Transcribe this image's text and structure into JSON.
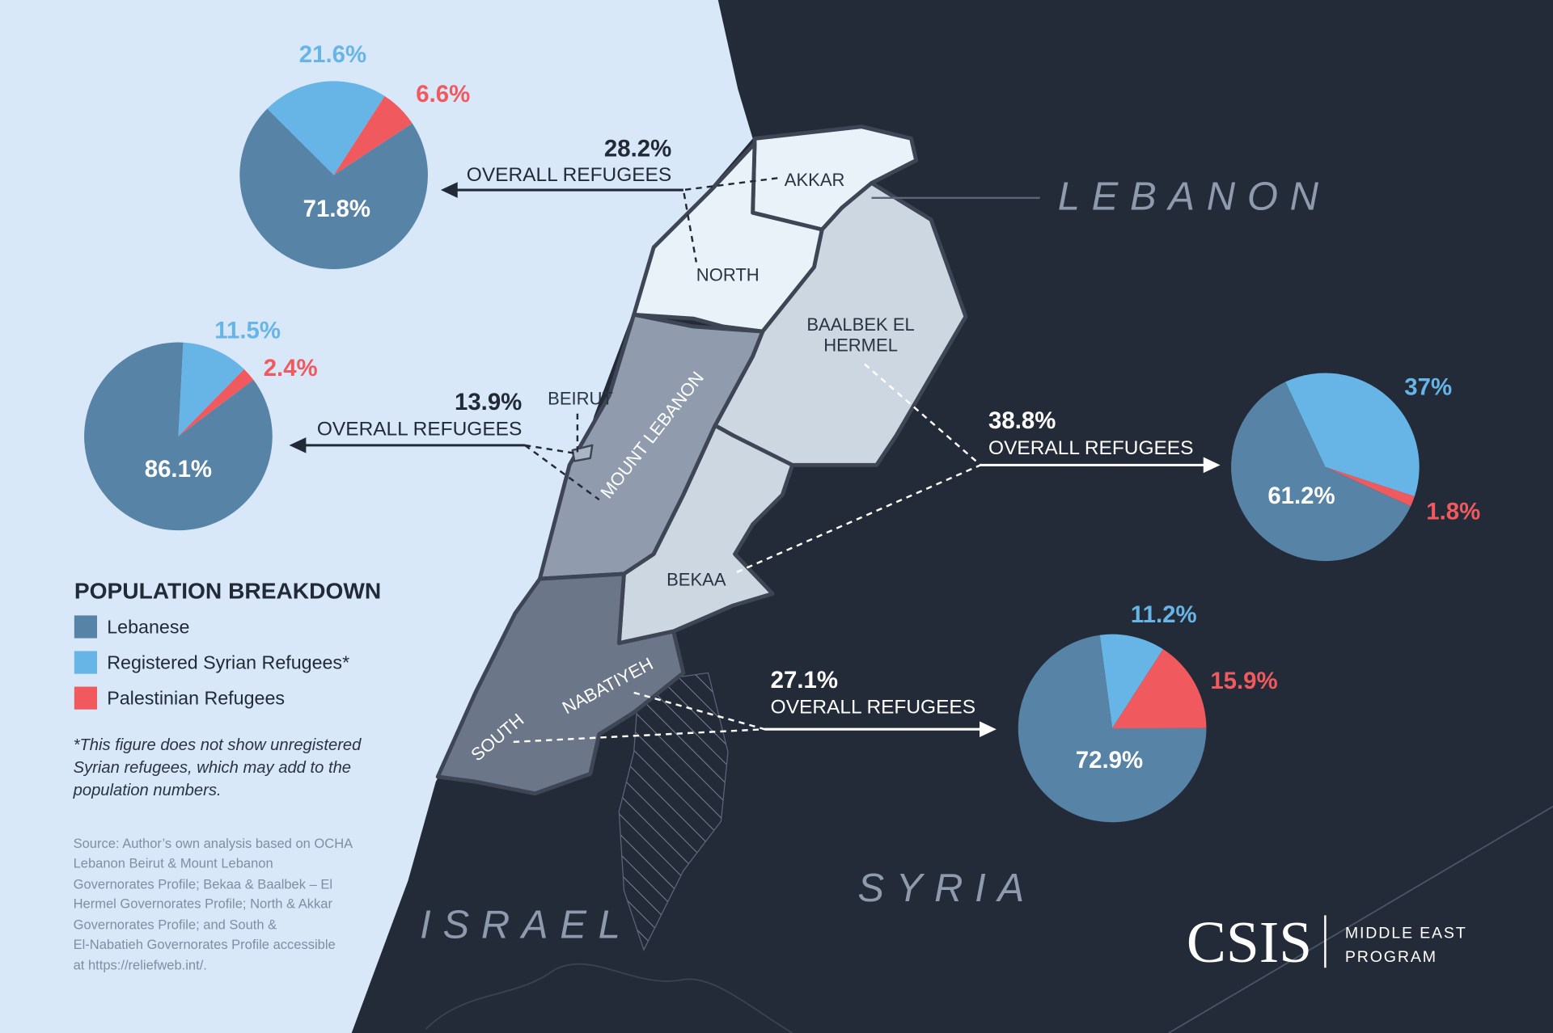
{
  "colors": {
    "lebanese": "#5683a6",
    "syrian": "#66b5e6",
    "palestinian": "#f05a5e",
    "sea": "#d9e8f9",
    "land": "#242b38"
  },
  "countries": {
    "lebanon": "LEBANON",
    "syria": "SYRIA",
    "israel": "ISRAEL"
  },
  "regions": {
    "akkar": "AKKAR",
    "north": "NORTH",
    "baalbek_1": "BAALBEK EL",
    "baalbek_2": "HERMEL",
    "beirut": "BEIRUT",
    "mount_lebanon": "MOUNT LEBANON",
    "bekaa": "BEKAA",
    "nabatiyeh": "NABATIYEH",
    "south": "SOUTH"
  },
  "callouts": [
    {
      "pct": "28.2%",
      "label": "OVERALL REFUGEES"
    },
    {
      "pct": "13.9%",
      "label": "OVERALL REFUGEES"
    },
    {
      "pct": "38.8%",
      "label": "OVERALL REFUGEES"
    },
    {
      "pct": "27.1%",
      "label": "OVERALL REFUGEES"
    }
  ],
  "chart_data": [
    {
      "type": "pie",
      "region": "North & Akkar",
      "categories": [
        "Lebanese",
        "Registered Syrian Refugees*",
        "Palestinian Refugees"
      ],
      "values": [
        71.8,
        21.6,
        6.6
      ],
      "labels": [
        "71.8%",
        "21.6%",
        "6.6%"
      ]
    },
    {
      "type": "pie",
      "region": "Beirut & Mount Lebanon",
      "categories": [
        "Lebanese",
        "Registered Syrian Refugees*",
        "Palestinian Refugees"
      ],
      "values": [
        86.1,
        11.5,
        2.4
      ],
      "labels": [
        "86.1%",
        "11.5%",
        "2.4%"
      ]
    },
    {
      "type": "pie",
      "region": "Bekaa & Baalbek El Hermel",
      "categories": [
        "Lebanese",
        "Registered Syrian Refugees*",
        "Palestinian Refugees"
      ],
      "values": [
        61.2,
        37,
        1.8
      ],
      "labels": [
        "61.2%",
        "37%",
        "1.8%"
      ]
    },
    {
      "type": "pie",
      "region": "South & Nabatiyeh",
      "categories": [
        "Lebanese",
        "Registered Syrian Refugees*",
        "Palestinian Refugees"
      ],
      "values": [
        72.9,
        11.2,
        15.9
      ],
      "labels": [
        "72.9%",
        "11.2%",
        "15.9%"
      ]
    }
  ],
  "legend": {
    "title": "POPULATION BREAKDOWN",
    "items": [
      "Lebanese",
      "Registered Syrian Refugees*",
      "Palestinian Refugees"
    ]
  },
  "footnote": [
    "*This figure does not show unregistered",
    "Syrian refugees, which may add to the",
    "population numbers."
  ],
  "source": [
    "Source: Author’s own analysis based on OCHA",
    "Lebanon Beirut & Mount Lebanon",
    "Governorates Profile; Bekaa & Baalbek – El",
    "Hermel Governorates Profile; North & Akkar",
    "Governorates Profile; and South &",
    "El-Nabatieh Governorates Profile accessible",
    "at https://reliefweb.int/."
  ],
  "logo": {
    "name": "CSIS",
    "program_1": "MIDDLE EAST",
    "program_2": "PROGRAM"
  }
}
